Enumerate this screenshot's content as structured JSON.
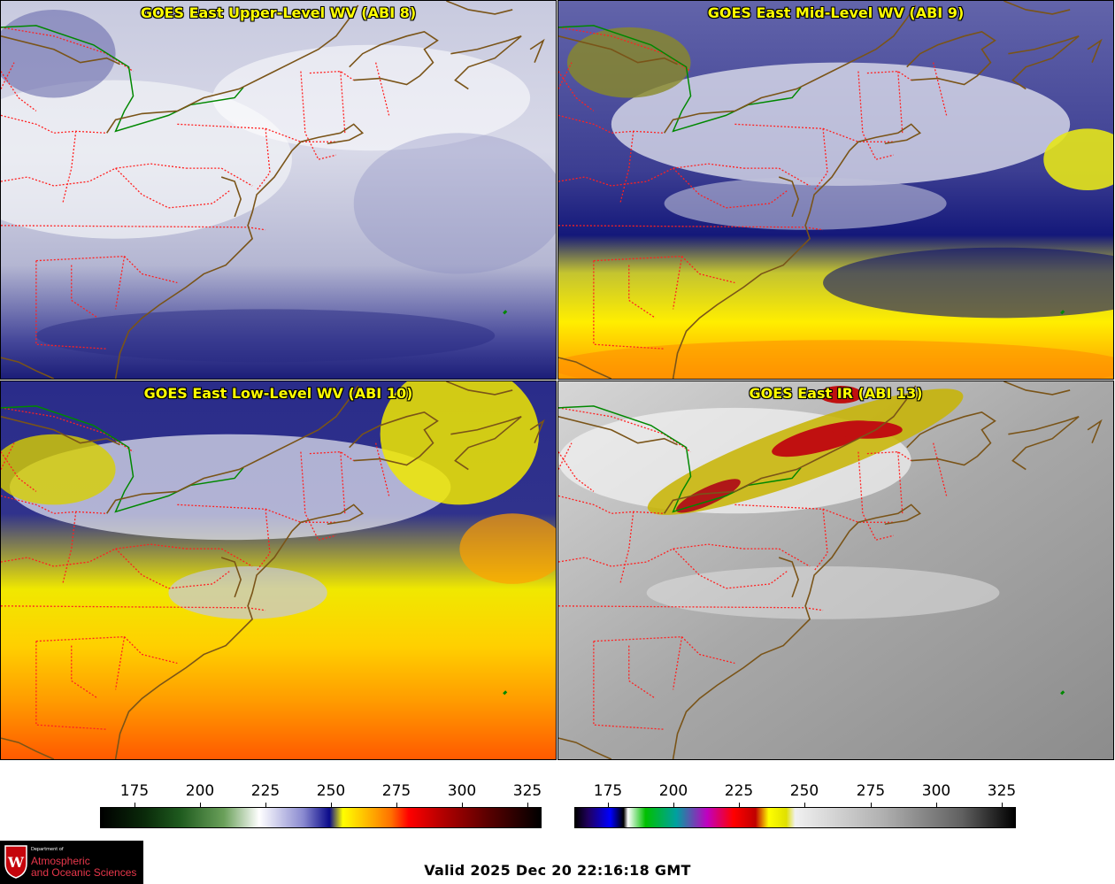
{
  "panels": [
    {
      "title": "GOES East Upper-Level WV (ABI 8)"
    },
    {
      "title": "GOES East Mid-Level WV (ABI 9)"
    },
    {
      "title": "GOES East Low-Level WV (ABI 10)"
    },
    {
      "title": "GOES East IR (ABI 13)"
    }
  ],
  "colorbars": {
    "wv": {
      "ticks": [
        "175",
        "200",
        "225",
        "250",
        "275",
        "300",
        "325"
      ]
    },
    "ir": {
      "ticks": [
        "175",
        "200",
        "225",
        "250",
        "275",
        "300",
        "325"
      ]
    }
  },
  "logo": {
    "crest": "W",
    "dept_line": "Department of",
    "name_line1": "Atmospheric",
    "name_line2": "and Oceanic Sciences"
  },
  "valid_time": "Valid 2025 Dec 20 22:16:18 GMT",
  "colors": {
    "title_text": "#ffff00",
    "state_border": "#ff2020",
    "coastline": "#7a5418",
    "intl_border": "#008800"
  }
}
